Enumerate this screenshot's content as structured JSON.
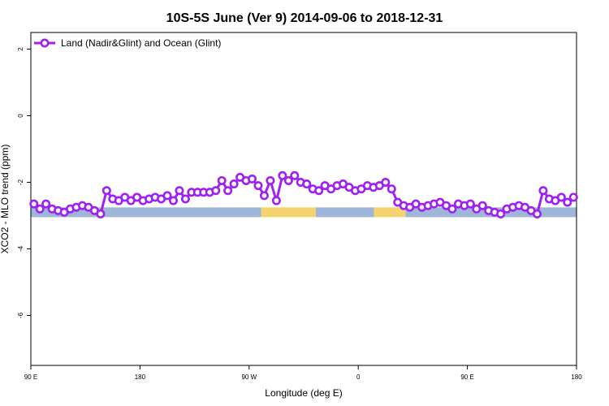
{
  "chart_data": {
    "type": "line",
    "title": "10S-5S June (Ver 9)   2014-09-06 to 2018-12-31",
    "xlabel": "Longitude (deg E)",
    "ylabel": "XCO2 - MLO trend (ppm)",
    "xlim": [
      90,
      540
    ],
    "ylim": [
      -7.5,
      2.5
    ],
    "x_ticks": [
      {
        "value": 90,
        "label": "90 E"
      },
      {
        "value": 180,
        "label": "180"
      },
      {
        "value": 270,
        "label": "90 W"
      },
      {
        "value": 360,
        "label": "0"
      },
      {
        "value": 450,
        "label": "90 E"
      },
      {
        "value": 540,
        "label": "180"
      }
    ],
    "y_ticks": [
      {
        "value": 2,
        "label": "2"
      },
      {
        "value": 0,
        "label": "0"
      },
      {
        "value": -2,
        "label": "-2"
      },
      {
        "value": -4,
        "label": "-4"
      },
      {
        "value": -6,
        "label": "-6"
      }
    ],
    "grid": false,
    "legend_position": "top-left",
    "series": [
      {
        "name": "Land (Nadir&Glint) and Ocean (Glint)",
        "color": "#a020f0",
        "x": [
          92.5,
          97.5,
          102.5,
          107.5,
          112.5,
          117.5,
          122.5,
          127.5,
          132.5,
          137.5,
          142.5,
          147.5,
          152.5,
          157.5,
          162.5,
          167.5,
          172.5,
          177.5,
          182.5,
          187.5,
          192.5,
          197.5,
          202.5,
          207.5,
          212.5,
          217.5,
          222.5,
          227.5,
          232.5,
          237.5,
          242.5,
          247.5,
          252.5,
          257.5,
          262.5,
          267.5,
          272.5,
          277.5,
          282.5,
          287.5,
          292.5,
          297.5,
          302.5,
          307.5,
          312.5,
          317.5,
          322.5,
          327.5,
          332.5,
          337.5,
          342.5,
          347.5,
          352.5,
          357.5,
          362.5,
          367.5,
          372.5,
          377.5,
          382.5,
          387.5,
          392.5,
          397.5,
          402.5,
          407.5,
          412.5,
          417.5,
          422.5,
          427.5,
          432.5,
          437.5,
          442.5,
          447.5,
          452.5,
          457.5,
          462.5,
          467.5,
          472.5,
          477.5,
          482.5,
          487.5,
          492.5,
          497.5,
          502.5,
          507.5,
          512.5,
          517.5,
          522.5,
          527.5,
          532.5,
          537.5
        ],
        "y": [
          -2.65,
          -2.8,
          -2.65,
          -2.8,
          -2.85,
          -2.9,
          -2.8,
          -2.75,
          -2.7,
          -2.75,
          -2.85,
          -2.95,
          -2.25,
          -2.5,
          -2.55,
          -2.45,
          -2.55,
          -2.45,
          -2.55,
          -2.5,
          -2.45,
          -2.5,
          -2.4,
          -2.55,
          -2.25,
          -2.5,
          -2.3,
          -2.3,
          -2.3,
          -2.3,
          -2.25,
          -1.95,
          -2.25,
          -2.05,
          -1.85,
          -1.95,
          -1.9,
          -2.1,
          -2.4,
          -1.95,
          -2.55,
          -1.8,
          -1.95,
          -1.8,
          -2.0,
          -2.05,
          -2.2,
          -2.25,
          -2.1,
          -2.2,
          -2.1,
          -2.05,
          -2.15,
          -2.25,
          -2.2,
          -2.1,
          -2.15,
          -2.1,
          -2.0,
          -2.2,
          -2.6,
          -2.7,
          -2.75,
          -2.65,
          -2.75,
          -2.7,
          -2.65,
          -2.6,
          -2.7,
          -2.8,
          -2.65,
          -2.7,
          -2.65,
          -2.8,
          -2.7,
          -2.85,
          -2.9,
          -2.95,
          -2.8,
          -2.75,
          -2.7,
          -2.75,
          -2.85,
          -2.95,
          -2.25,
          -2.5,
          -2.55,
          -2.45,
          -2.6,
          -2.45
        ]
      }
    ],
    "surface_band": {
      "y": -2.9,
      "segments": [
        {
          "from": 90,
          "to": 148,
          "type": "ocean",
          "color": "#9eb6d7"
        },
        {
          "from": 148,
          "to": 149,
          "type": "land",
          "color": "#f5d36e"
        },
        {
          "from": 149,
          "to": 280,
          "type": "ocean",
          "color": "#9eb6d7"
        },
        {
          "from": 280,
          "to": 325,
          "type": "land",
          "color": "#f5d36e"
        },
        {
          "from": 325,
          "to": 373,
          "type": "ocean",
          "color": "#9eb6d7"
        },
        {
          "from": 373,
          "to": 399,
          "type": "land",
          "color": "#f5d36e"
        },
        {
          "from": 399,
          "to": 540,
          "type": "ocean",
          "color": "#9eb6d7"
        }
      ]
    }
  }
}
